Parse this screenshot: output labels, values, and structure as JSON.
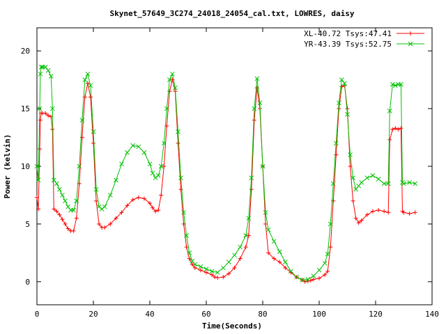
{
  "chart_data": {
    "type": "line",
    "title": "Skynet_57649_3C274_24018_24054_cal.txt, LOWRES, daisy",
    "xlabel": "Time(Seconds)",
    "ylabel": "Power (kelvin)",
    "xlim": [
      0,
      140
    ],
    "ylim": [
      -2,
      22
    ],
    "x_ticks": [
      0,
      20,
      40,
      60,
      80,
      100,
      120,
      140
    ],
    "y_ticks": [
      0,
      5,
      10,
      15,
      20
    ],
    "grid": false,
    "legend_position": "top-right",
    "series": [
      {
        "name": "XL-40.72 Tsys:47.41",
        "color": "#ff0000",
        "marker": "plus",
        "points": [
          [
            0,
            7.3
          ],
          [
            0.5,
            6.3
          ],
          [
            1,
            11.5
          ],
          [
            1.2,
            14
          ],
          [
            1.5,
            14.6
          ],
          [
            2,
            14.6
          ],
          [
            3,
            14.6
          ],
          [
            4,
            14.4
          ],
          [
            5,
            14.3
          ],
          [
            5.5,
            13.2
          ],
          [
            6,
            6.3
          ],
          [
            7,
            6.1
          ],
          [
            8,
            5.8
          ],
          [
            9,
            5.4
          ],
          [
            10,
            5
          ],
          [
            11,
            4.6
          ],
          [
            12,
            4.4
          ],
          [
            13,
            4.4
          ],
          [
            14,
            5.5
          ],
          [
            15,
            8.5
          ],
          [
            16,
            12.5
          ],
          [
            17,
            16
          ],
          [
            18,
            17.2
          ],
          [
            19,
            16
          ],
          [
            20,
            12
          ],
          [
            21,
            7
          ],
          [
            22,
            5
          ],
          [
            23,
            4.7
          ],
          [
            24,
            4.7
          ],
          [
            26,
            5
          ],
          [
            28,
            5.5
          ],
          [
            30,
            6
          ],
          [
            32,
            6.6
          ],
          [
            34,
            7.1
          ],
          [
            36,
            7.3
          ],
          [
            38,
            7.2
          ],
          [
            40,
            6.8
          ],
          [
            41,
            6.4
          ],
          [
            42,
            6.1
          ],
          [
            43,
            6.2
          ],
          [
            44,
            7.5
          ],
          [
            45,
            10
          ],
          [
            46,
            13.5
          ],
          [
            47,
            16.5
          ],
          [
            48,
            17.5
          ],
          [
            49,
            16.5
          ],
          [
            50,
            12
          ],
          [
            51,
            8
          ],
          [
            52,
            5
          ],
          [
            53,
            3
          ],
          [
            54,
            2
          ],
          [
            55,
            1.5
          ],
          [
            56,
            1.2
          ],
          [
            58,
            1
          ],
          [
            60,
            0.8
          ],
          [
            62,
            0.6
          ],
          [
            63,
            0.4
          ],
          [
            64,
            0.35
          ],
          [
            66,
            0.4
          ],
          [
            68,
            0.7
          ],
          [
            70,
            1.2
          ],
          [
            72,
            2
          ],
          [
            74,
            3
          ],
          [
            75,
            4
          ],
          [
            76,
            8
          ],
          [
            77,
            14
          ],
          [
            78,
            16.8
          ],
          [
            79,
            15
          ],
          [
            80,
            10
          ],
          [
            81,
            5
          ],
          [
            82,
            2.5
          ],
          [
            84,
            2
          ],
          [
            86,
            1.7
          ],
          [
            88,
            1.2
          ],
          [
            90,
            0.8
          ],
          [
            92,
            0.4
          ],
          [
            94,
            0.15
          ],
          [
            95,
            0
          ],
          [
            96,
            0.05
          ],
          [
            97,
            0.1
          ],
          [
            98,
            0.2
          ],
          [
            100,
            0.3
          ],
          [
            102,
            0.6
          ],
          [
            103,
            0.9
          ],
          [
            104,
            3
          ],
          [
            105,
            7
          ],
          [
            106,
            11
          ],
          [
            107,
            15
          ],
          [
            108,
            16.9
          ],
          [
            109,
            17
          ],
          [
            110,
            15
          ],
          [
            111,
            10
          ],
          [
            112,
            7
          ],
          [
            113,
            5.5
          ],
          [
            114,
            5.1
          ],
          [
            115,
            5.3
          ],
          [
            117,
            5.8
          ],
          [
            119,
            6.1
          ],
          [
            121,
            6.2
          ],
          [
            123,
            6.1
          ],
          [
            124.5,
            6
          ],
          [
            125,
            12.3
          ],
          [
            126,
            13.2
          ],
          [
            127,
            13.3
          ],
          [
            128,
            13.2
          ],
          [
            129,
            13.3
          ],
          [
            129.5,
            6.1
          ],
          [
            130,
            6
          ],
          [
            132,
            5.9
          ],
          [
            134,
            6
          ]
        ]
      },
      {
        "name": "YR-43.39 Tsys:52.75",
        "color": "#00c000",
        "marker": "cross",
        "points": [
          [
            0,
            10
          ],
          [
            0.5,
            8.8
          ],
          [
            1,
            15
          ],
          [
            1.2,
            18
          ],
          [
            1.5,
            18.6
          ],
          [
            2,
            18.6
          ],
          [
            3,
            18.6
          ],
          [
            4,
            18.3
          ],
          [
            5,
            17.8
          ],
          [
            5.5,
            15
          ],
          [
            6,
            8.8
          ],
          [
            7,
            8.5
          ],
          [
            8,
            8
          ],
          [
            9,
            7.5
          ],
          [
            10,
            7
          ],
          [
            11,
            6.5
          ],
          [
            12,
            6.2
          ],
          [
            13,
            6.2
          ],
          [
            14,
            7
          ],
          [
            15,
            10
          ],
          [
            16,
            14
          ],
          [
            17,
            17.5
          ],
          [
            18,
            18
          ],
          [
            19,
            17
          ],
          [
            20,
            13
          ],
          [
            21,
            8
          ],
          [
            22,
            6.5
          ],
          [
            23,
            6.3
          ],
          [
            24,
            6.5
          ],
          [
            26,
            7.5
          ],
          [
            28,
            8.8
          ],
          [
            30,
            10.2
          ],
          [
            32,
            11.2
          ],
          [
            34,
            11.8
          ],
          [
            36,
            11.7
          ],
          [
            38,
            11.2
          ],
          [
            40,
            10.2
          ],
          [
            41,
            9.4
          ],
          [
            42,
            9
          ],
          [
            43,
            9.2
          ],
          [
            44,
            10
          ],
          [
            45,
            12
          ],
          [
            46,
            15
          ],
          [
            47,
            17.5
          ],
          [
            48,
            18
          ],
          [
            49,
            16.8
          ],
          [
            50,
            13
          ],
          [
            51,
            9
          ],
          [
            52,
            6
          ],
          [
            53,
            4
          ],
          [
            54,
            2.5
          ],
          [
            55,
            1.8
          ],
          [
            56,
            1.5
          ],
          [
            58,
            1.3
          ],
          [
            60,
            1.1
          ],
          [
            62,
            0.9
          ],
          [
            64,
            0.8
          ],
          [
            66,
            1.2
          ],
          [
            68,
            1.7
          ],
          [
            70,
            2.3
          ],
          [
            72,
            3
          ],
          [
            74,
            4
          ],
          [
            75,
            5.5
          ],
          [
            76,
            9
          ],
          [
            77,
            15
          ],
          [
            78,
            17.6
          ],
          [
            79,
            15.5
          ],
          [
            80,
            10
          ],
          [
            81,
            6
          ],
          [
            82,
            4.5
          ],
          [
            84,
            3.5
          ],
          [
            86,
            2.6
          ],
          [
            88,
            1.7
          ],
          [
            90,
            0.9
          ],
          [
            92,
            0.4
          ],
          [
            94,
            0.15
          ],
          [
            96,
            0.2
          ],
          [
            98,
            0.5
          ],
          [
            100,
            1
          ],
          [
            102,
            1.6
          ],
          [
            103,
            2.4
          ],
          [
            104,
            5
          ],
          [
            105,
            8.5
          ],
          [
            106,
            12
          ],
          [
            107,
            15.5
          ],
          [
            108,
            17.5
          ],
          [
            109,
            17.2
          ],
          [
            110,
            14.5
          ],
          [
            111,
            11
          ],
          [
            112,
            9
          ],
          [
            113,
            8
          ],
          [
            114,
            8.3
          ],
          [
            115,
            8.6
          ],
          [
            117,
            9
          ],
          [
            119,
            9.2
          ],
          [
            121,
            8.9
          ],
          [
            123,
            8.5
          ],
          [
            124.5,
            8.5
          ],
          [
            125,
            14.8
          ],
          [
            126,
            17.1
          ],
          [
            127,
            17
          ],
          [
            128,
            17.1
          ],
          [
            129,
            17.1
          ],
          [
            129.5,
            8.6
          ],
          [
            130,
            8.5
          ],
          [
            132,
            8.6
          ],
          [
            134,
            8.5
          ]
        ]
      }
    ]
  }
}
